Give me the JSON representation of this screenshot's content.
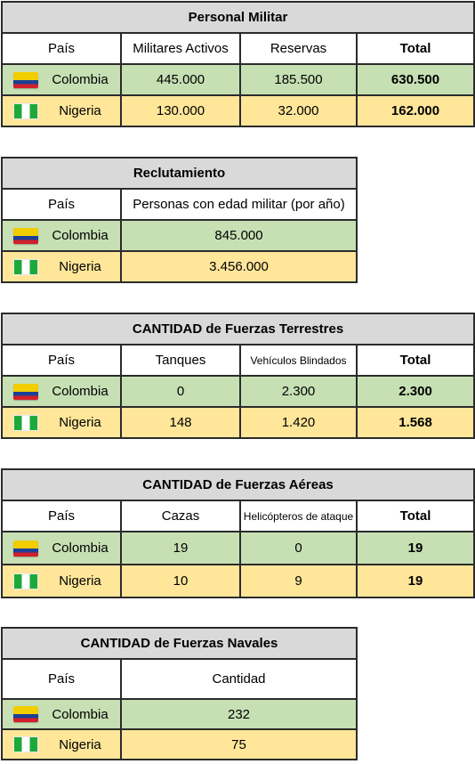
{
  "tables": {
    "personal": {
      "title": "Personal Militar",
      "headers": [
        "País",
        "Militares Activos",
        "Reservas",
        "Total"
      ],
      "rows": [
        {
          "pais": "Colombia",
          "flag": "colombia-flag",
          "c1": "445.000",
          "c2": "185.500",
          "total": "630.500"
        },
        {
          "pais": "Nigeria",
          "flag": "nigeria-flag",
          "c1": "130.000",
          "c2": "32.000",
          "total": "162.000"
        }
      ]
    },
    "reclutamiento": {
      "title": "Reclutamiento",
      "headers": [
        "País",
        "Personas con edad militar (por año)"
      ],
      "rows": [
        {
          "pais": "Colombia",
          "flag": "colombia-flag",
          "c1": "845.000"
        },
        {
          "pais": "Nigeria",
          "flag": "nigeria-flag",
          "c1": "3.456.000"
        }
      ]
    },
    "terrestres": {
      "title": "CANTIDAD de Fuerzas Terrestres",
      "headers": [
        "País",
        "Tanques",
        "Vehículos Blindados",
        "Total"
      ],
      "rows": [
        {
          "pais": "Colombia",
          "flag": "colombia-flag",
          "c1": "0",
          "c2": "2.300",
          "total": "2.300"
        },
        {
          "pais": "Nigeria",
          "flag": "nigeria-flag",
          "c1": "148",
          "c2": "1.420",
          "total": "1.568"
        }
      ]
    },
    "aereas": {
      "title": "CANTIDAD de Fuerzas Aéreas",
      "headers": [
        "País",
        "Cazas",
        "Helicópteros de ataque",
        "Total"
      ],
      "rows": [
        {
          "pais": "Colombia",
          "flag": "colombia-flag",
          "c1": "19",
          "c2": "0",
          "total": "19"
        },
        {
          "pais": "Nigeria",
          "flag": "nigeria-flag",
          "c1": "10",
          "c2": "9",
          "total": "19"
        }
      ]
    },
    "navales": {
      "title": "CANTIDAD de Fuerzas Navales",
      "headers": [
        "País",
        "Cantidad"
      ],
      "rows": [
        {
          "pais": "Colombia",
          "flag": "colombia-flag",
          "c1": "232"
        },
        {
          "pais": "Nigeria",
          "flag": "nigeria-flag",
          "c1": "75"
        }
      ]
    }
  },
  "colors": {
    "title_bg": "#d9d9d9",
    "colombia_row": "#c6e0b4",
    "nigeria_row": "#ffe699",
    "border": "#2b2b2b"
  }
}
